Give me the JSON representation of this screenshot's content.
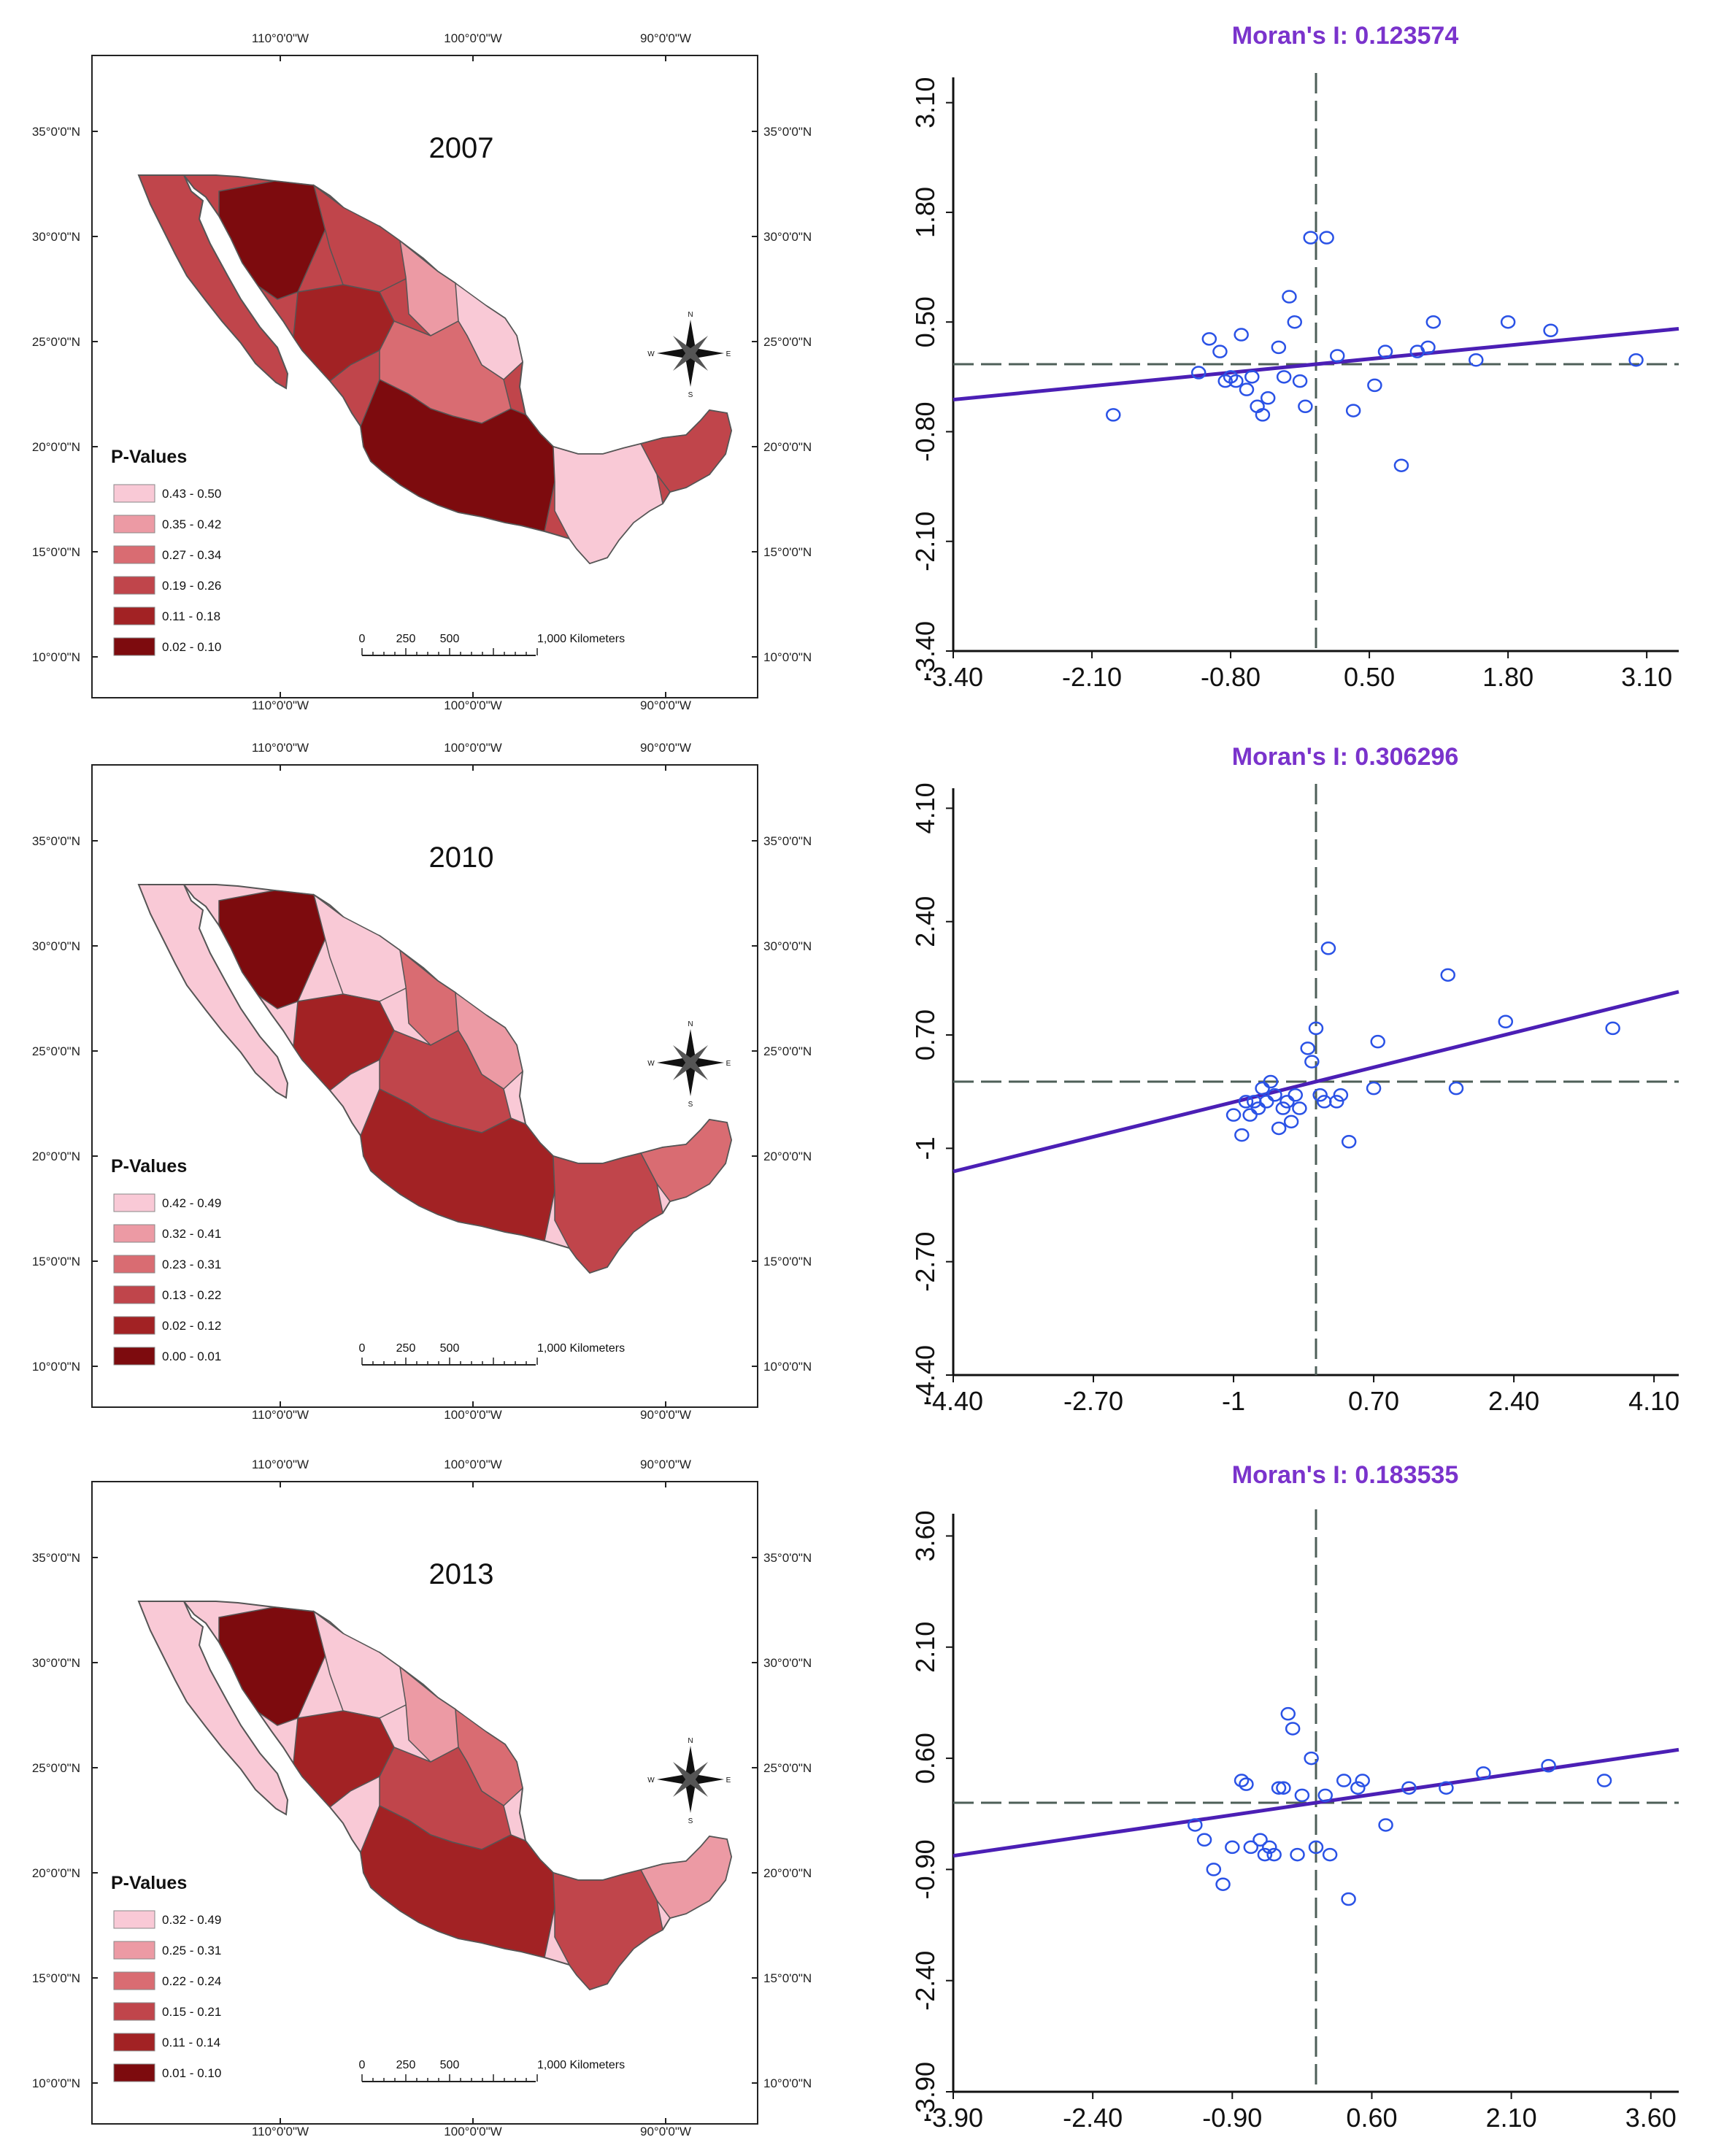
{
  "maps": [
    {
      "year": "2007",
      "legend_title": "P-Values",
      "legend": [
        "0.43 - 0.50",
        "0.35 - 0.42",
        "0.27 - 0.34",
        "0.19 - 0.26",
        "0.11 - 0.18",
        "0.02 - 0.10"
      ]
    },
    {
      "year": "2010",
      "legend_title": "P-Values",
      "legend": [
        "0.42 - 0.49",
        "0.32 - 0.41",
        "0.23 - 0.31",
        "0.13 - 0.22",
        "0.02 - 0.12",
        "0.00 - 0.01"
      ]
    },
    {
      "year": "2013",
      "legend_title": "P-Values",
      "legend": [
        "0.32 - 0.49",
        "0.25 - 0.31",
        "0.22 - 0.24",
        "0.15 - 0.21",
        "0.11 - 0.14",
        "0.01 - 0.10"
      ]
    }
  ],
  "map_labels": {
    "lon": [
      "110°0'0\"W",
      "100°0'0\"W",
      "90°0'0\"W"
    ],
    "lat": [
      "35°0'0\"N",
      "30°0'0\"N",
      "25°0'0\"N",
      "20°0'0\"N",
      "15°0'0\"N",
      "10°0'0\"N"
    ],
    "scale": [
      "0",
      "250",
      "500",
      "1,000 Kilometers"
    ],
    "compass": [
      "N",
      "E",
      "S",
      "W"
    ]
  },
  "colors": {
    "legend": [
      "#f9c9d6",
      "#ec9aa4",
      "#d96c72",
      "#c0454b",
      "#a22224",
      "#7d0b0e"
    ],
    "point": "#2a52e6",
    "regression": "#4b1fb5",
    "title": "#7a33cc",
    "guide": "#4e5f58"
  },
  "chart_data": [
    {
      "type": "scatter",
      "title": "Moran's I: 0.123574",
      "xlim": [
        -3.4,
        3.4
      ],
      "ylim": [
        -3.4,
        3.4
      ],
      "xticks": [
        "-3.40",
        "-2.10",
        "-0.80",
        "0.50",
        "1.80",
        "3.10"
      ],
      "yticks": [
        "-3.40",
        "-2.10",
        "-0.80",
        "0.50",
        "1.80",
        "3.10"
      ],
      "slope": 0.123574,
      "x": [
        -1.9,
        -1.1,
        -1.0,
        -0.9,
        -0.85,
        -0.8,
        -0.75,
        -0.7,
        -0.65,
        -0.6,
        -0.55,
        -0.5,
        -0.45,
        -0.35,
        -0.3,
        -0.25,
        -0.2,
        -0.15,
        -0.1,
        -0.05,
        0.1,
        0.2,
        0.35,
        0.55,
        0.65,
        0.8,
        0.95,
        1.05,
        1.1,
        1.5,
        1.8,
        2.2,
        3.0
      ],
      "y": [
        -0.6,
        -0.1,
        0.3,
        0.15,
        -0.2,
        -0.15,
        -0.2,
        0.35,
        -0.3,
        -0.15,
        -0.5,
        -0.6,
        -0.4,
        0.2,
        -0.15,
        0.8,
        0.5,
        -0.2,
        -0.5,
        1.5,
        1.5,
        0.1,
        -0.55,
        -0.25,
        0.15,
        -1.2,
        0.15,
        0.2,
        0.5,
        0.05,
        0.5,
        0.4,
        0.05
      ]
    },
    {
      "type": "scatter",
      "title": "Moran's I: 0.306296",
      "xlim": [
        -4.4,
        4.4
      ],
      "ylim": [
        -4.4,
        4.4
      ],
      "xticks": [
        "-4.40",
        "-2.70",
        "-1",
        "0.70",
        "2.40",
        "4.10"
      ],
      "yticks": [
        "-4.40",
        "-2.70",
        "-1",
        "0.70",
        "2.40",
        "4.10"
      ],
      "slope": 0.306296,
      "x": [
        -1.0,
        -0.9,
        -0.85,
        -0.8,
        -0.75,
        -0.7,
        -0.65,
        -0.6,
        -0.55,
        -0.5,
        -0.45,
        -0.4,
        -0.35,
        -0.3,
        -0.25,
        -0.2,
        -0.1,
        -0.05,
        0.0,
        0.05,
        0.1,
        0.15,
        0.25,
        0.3,
        0.4,
        0.7,
        0.75,
        1.6,
        1.7,
        2.3,
        3.6
      ],
      "y": [
        -0.5,
        -0.8,
        -0.3,
        -0.5,
        -0.3,
        -0.4,
        -0.1,
        -0.3,
        0.0,
        -0.2,
        -0.7,
        -0.4,
        -0.3,
        -0.6,
        -0.2,
        -0.4,
        0.5,
        0.3,
        0.8,
        -0.2,
        -0.3,
        2.0,
        -0.3,
        -0.2,
        -0.9,
        -0.1,
        0.6,
        1.6,
        -0.1,
        0.9,
        0.8
      ]
    },
    {
      "type": "scatter",
      "title": "Moran's I: 0.183535",
      "xlim": [
        -3.9,
        3.9
      ],
      "ylim": [
        -3.9,
        3.9
      ],
      "xticks": [
        "-3.90",
        "-2.40",
        "-0.90",
        "0.60",
        "2.10",
        "3.60"
      ],
      "yticks": [
        "-3.90",
        "-2.40",
        "-0.90",
        "0.60",
        "2.10",
        "3.60"
      ],
      "slope": 0.183535,
      "x": [
        -1.3,
        -1.2,
        -1.1,
        -1.0,
        -0.9,
        -0.8,
        -0.75,
        -0.7,
        -0.6,
        -0.55,
        -0.5,
        -0.45,
        -0.4,
        -0.35,
        -0.3,
        -0.25,
        -0.2,
        -0.15,
        -0.05,
        0.0,
        0.1,
        0.15,
        0.3,
        0.35,
        0.45,
        0.5,
        0.75,
        1.0,
        1.4,
        1.8,
        2.5,
        3.1
      ],
      "y": [
        -0.3,
        -0.5,
        -0.9,
        -1.1,
        -0.6,
        0.3,
        0.25,
        -0.6,
        -0.5,
        -0.7,
        -0.6,
        -0.7,
        0.2,
        0.2,
        1.2,
        1.0,
        -0.7,
        0.1,
        0.6,
        -0.6,
        0.1,
        -0.7,
        0.3,
        -1.3,
        0.2,
        0.3,
        -0.3,
        0.2,
        0.2,
        0.4,
        0.5,
        0.3
      ]
    }
  ]
}
